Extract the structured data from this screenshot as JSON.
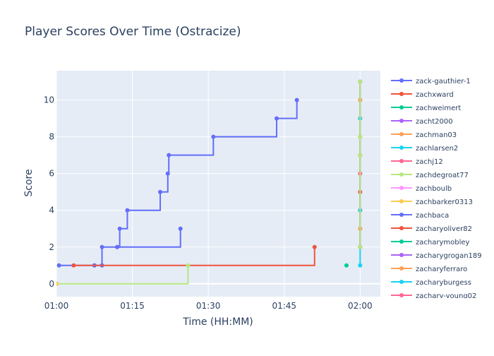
{
  "chart_data": {
    "type": "line",
    "title": "Player Scores Over Time (Ostracize)",
    "xlabel": "Time (HH:MM)",
    "ylabel": "Score",
    "x_range_minutes": [
      60,
      124
    ],
    "x_ticks": [
      {
        "minute": 60,
        "label": "01:00"
      },
      {
        "minute": 75,
        "label": "01:15"
      },
      {
        "minute": 90,
        "label": "01:30"
      },
      {
        "minute": 105,
        "label": "01:45"
      },
      {
        "minute": 120,
        "label": "02:00"
      }
    ],
    "y_range": [
      -0.7,
      11.6
    ],
    "y_ticks": [
      0,
      2,
      4,
      6,
      8,
      10
    ],
    "grid": true,
    "step": "hv",
    "legend_position": "right",
    "series": [
      {
        "name": "zack-gauthier-1",
        "color": "#636efa",
        "points": [
          [
            60.5,
            1
          ],
          [
            67.5,
            1
          ],
          [
            67.5,
            1
          ],
          [
            69,
            1
          ],
          [
            69,
            2
          ],
          [
            72,
            2
          ],
          [
            72.5,
            3
          ],
          [
            74,
            4
          ],
          [
            80.5,
            5
          ],
          [
            82,
            6
          ],
          [
            82.2,
            7
          ],
          [
            91,
            8
          ],
          [
            103.5,
            9
          ],
          [
            107.5,
            10
          ]
        ]
      },
      {
        "name": "zachxward",
        "color": "#ef553b",
        "points": [
          [
            63.4,
            1
          ],
          [
            111,
            2
          ]
        ]
      },
      {
        "name": "zachweimert",
        "color": "#00cc96",
        "points": [
          [
            117.3,
            1
          ]
        ]
      },
      {
        "name": "zacht2000",
        "color": "#ab63fa",
        "points": [
          [
            60,
            0
          ]
        ]
      },
      {
        "name": "zachman03",
        "color": "#ffa15a",
        "points": [
          [
            60,
            0
          ]
        ]
      },
      {
        "name": "zachlarsen2",
        "color": "#19d3f3",
        "points": [
          [
            60,
            0
          ]
        ]
      },
      {
        "name": "zachj12",
        "color": "#ff6692",
        "points": [
          [
            60,
            0
          ]
        ]
      },
      {
        "name": "zachdegroat77",
        "color": "#b6e880",
        "points": [
          [
            60,
            0
          ],
          [
            86,
            1
          ]
        ]
      },
      {
        "name": "zachboulb",
        "color": "#ff97ff",
        "points": [
          [
            60,
            0
          ]
        ]
      },
      {
        "name": "zachbarker0313",
        "color": "#fecb52",
        "points": [
          [
            60,
            0
          ]
        ]
      },
      {
        "name": "zachbaca",
        "color": "#636efa",
        "points": [
          [
            72,
            2
          ],
          [
            84.5,
            3
          ]
        ]
      },
      {
        "name": "zacharyoliver82",
        "color": "#ef553b",
        "points": [
          [
            120,
            2
          ],
          [
            120,
            3
          ],
          [
            120,
            4
          ],
          [
            120,
            5
          ],
          [
            120,
            6
          ],
          [
            120,
            7
          ],
          [
            120,
            8
          ],
          [
            120,
            9
          ],
          [
            120,
            10
          ],
          [
            120,
            11
          ]
        ]
      },
      {
        "name": "zacharymobley",
        "color": "#00cc96",
        "points": [
          [
            120,
            2
          ],
          [
            120,
            11
          ]
        ]
      },
      {
        "name": "zacharygrogan189",
        "color": "#ab63fa",
        "points": [
          [
            120,
            2
          ],
          [
            120,
            4
          ],
          [
            120,
            11
          ]
        ]
      },
      {
        "name": "zacharyferraro",
        "color": "#ffa15a",
        "points": [
          [
            120,
            2
          ],
          [
            120,
            3
          ],
          [
            120,
            10
          ],
          [
            120,
            11
          ]
        ]
      },
      {
        "name": "zacharyburgess",
        "color": "#19d3f3",
        "points": [
          [
            120,
            1
          ],
          [
            120,
            4
          ],
          [
            120,
            9
          ],
          [
            120,
            11
          ]
        ]
      },
      {
        "name": "zachary-young02",
        "color": "#ff6692",
        "points": [
          [
            120,
            2
          ],
          [
            120,
            6
          ],
          [
            120,
            11
          ]
        ]
      },
      {
        "name": "",
        "color": "#b6e880",
        "points": [
          [
            120,
            2
          ],
          [
            120,
            7
          ],
          [
            120,
            8
          ],
          [
            120,
            11
          ]
        ]
      }
    ]
  }
}
